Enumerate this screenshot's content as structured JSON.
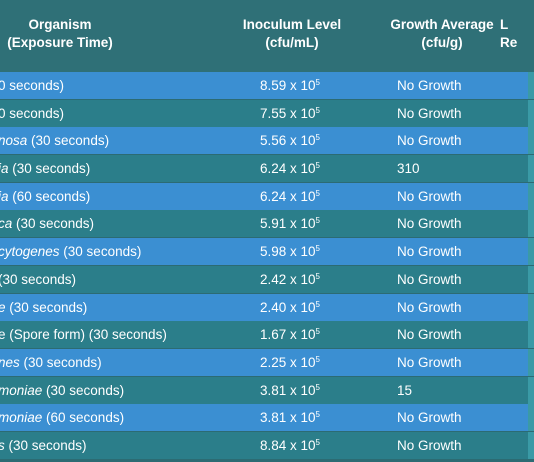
{
  "header": {
    "organism_line1": "Organism",
    "organism_line2": "(Exposure Time)",
    "inoculum_line1": "Inoculum Level",
    "inoculum_line2": "(cfu/mL)",
    "growth_line1": "Growth Average",
    "growth_line2": "(cfu/g)",
    "log_line1": "L",
    "log_line2": "Re"
  },
  "rows": [
    {
      "org_italic": "",
      "org_rest": "0 seconds)",
      "inoculum_base": "8.59 x 10",
      "inoculum_exp": "5",
      "growth": "No Growth"
    },
    {
      "org_italic": "",
      "org_rest": "0 seconds)",
      "inoculum_base": "7.55 x 10",
      "inoculum_exp": "5",
      "growth": "No Growth"
    },
    {
      "org_italic": "nosa",
      "org_rest": " (30 seconds)",
      "inoculum_base": "5.56 x 10",
      "inoculum_exp": "5",
      "growth": "No Growth"
    },
    {
      "org_italic": "ia",
      "org_rest": " (30 seconds)",
      "inoculum_base": "6.24 x 10",
      "inoculum_exp": "5",
      "growth": "310"
    },
    {
      "org_italic": "ia",
      "org_rest": " (60 seconds)",
      "inoculum_base": "6.24 x 10",
      "inoculum_exp": "5",
      "growth": "No Growth"
    },
    {
      "org_italic": "ca",
      "org_rest": " (30 seconds)",
      "inoculum_base": "5.91 x 10",
      "inoculum_exp": "5",
      "growth": "No Growth"
    },
    {
      "org_italic": "cytogenes",
      "org_rest": " (30 seconds)",
      "inoculum_base": "5.98 x 10",
      "inoculum_exp": "5",
      "growth": "No Growth"
    },
    {
      "org_italic": "",
      "org_rest": "(30 seconds)",
      "inoculum_base": "2.42 x 10",
      "inoculum_exp": "5",
      "growth": "No Growth"
    },
    {
      "org_italic": "e",
      "org_rest": " (30 seconds)",
      "inoculum_base": "2.40 x 10",
      "inoculum_exp": "5",
      "growth": "No Growth"
    },
    {
      "org_italic": "",
      "org_rest": "e (Spore form) (30 seconds)",
      "inoculum_base": "1.67 x 10",
      "inoculum_exp": "5",
      "growth": "No Growth"
    },
    {
      "org_italic": "nes",
      "org_rest": " (30 seconds)",
      "inoculum_base": "2.25 x 10",
      "inoculum_exp": "5",
      "growth": "No Growth"
    },
    {
      "org_italic": "moniae",
      "org_rest": " (30 seconds)",
      "inoculum_base": "3.81 x 10",
      "inoculum_exp": "5",
      "growth": "15"
    },
    {
      "org_italic": "moniae",
      "org_rest": " (60 seconds)",
      "inoculum_base": "3.81 x 10",
      "inoculum_exp": "5",
      "growth": "No Growth"
    },
    {
      "org_italic": "s",
      "org_rest": " (30 seconds)",
      "inoculum_base": "8.84 x 10",
      "inoculum_exp": "5",
      "growth": "No Growth"
    }
  ]
}
